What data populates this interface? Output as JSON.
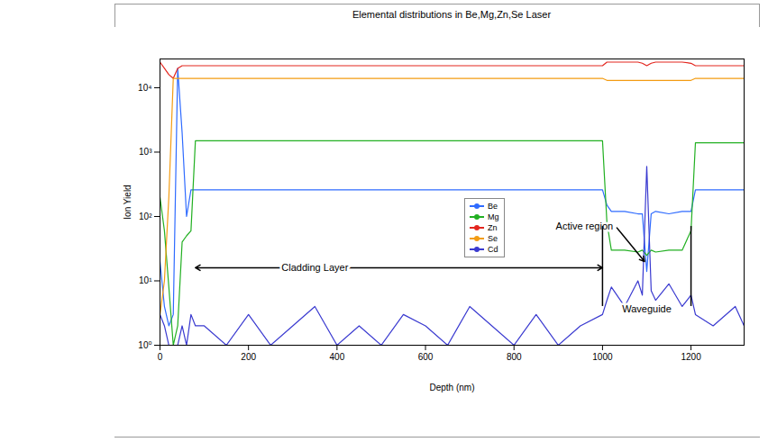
{
  "chart_data": {
    "type": "line",
    "title": "Elemental distributions in Be,Mg,Zn,Se Laser",
    "x_label": "Depth (nm)",
    "y_label": "Ion Yield",
    "x": [
      0,
      10,
      20,
      30,
      40,
      50,
      60,
      70,
      80,
      100,
      150,
      200,
      250,
      300,
      350,
      400,
      450,
      500,
      550,
      600,
      650,
      700,
      750,
      800,
      850,
      900,
      950,
      1000,
      1010,
      1020,
      1050,
      1080,
      1090,
      1100,
      1110,
      1120,
      1150,
      1180,
      1200,
      1210,
      1250,
      1300,
      1320
    ],
    "series": [
      {
        "name": "Be",
        "color": "#2f6bff",
        "values": [
          20,
          4,
          2,
          3,
          20000,
          2000,
          100,
          260,
          260,
          260,
          260,
          260,
          260,
          260,
          260,
          260,
          260,
          260,
          260,
          260,
          260,
          260,
          260,
          260,
          260,
          260,
          260,
          260,
          150,
          120,
          120,
          110,
          110,
          14,
          110,
          120,
          110,
          120,
          120,
          260,
          260,
          260,
          260
        ]
      },
      {
        "name": "Mg",
        "color": "#22b022",
        "values": [
          200,
          60,
          8,
          1,
          2,
          40,
          50,
          60,
          1500,
          1500,
          1500,
          1500,
          1500,
          1500,
          1500,
          1500,
          1500,
          1500,
          1500,
          1500,
          1500,
          1500,
          1500,
          1500,
          1500,
          1500,
          1500,
          1500,
          80,
          30,
          30,
          28,
          30,
          25,
          30,
          28,
          30,
          30,
          60,
          1400,
          1400,
          1400,
          1400
        ]
      },
      {
        "name": "Zn",
        "color": "#e3261f",
        "values": [
          25000,
          20000,
          16000,
          14000,
          20000,
          22000,
          22000,
          22000,
          22000,
          22000,
          22000,
          22000,
          22000,
          22000,
          22000,
          22000,
          22000,
          22000,
          22000,
          22000,
          22000,
          22000,
          22000,
          22000,
          22000,
          22000,
          22000,
          22000,
          25000,
          25000,
          25000,
          25000,
          24000,
          22000,
          24000,
          25000,
          25000,
          25000,
          24000,
          22000,
          22000,
          22000,
          22000
        ]
      },
      {
        "name": "Se",
        "color": "#f39c12",
        "values": [
          3,
          10,
          200,
          14000,
          14000,
          14000,
          14000,
          14000,
          14000,
          14000,
          14000,
          14000,
          14000,
          14000,
          14000,
          14000,
          14000,
          14000,
          14000,
          14000,
          14000,
          14000,
          14000,
          14000,
          14000,
          14000,
          14000,
          14000,
          13000,
          13000,
          13000,
          13000,
          13000,
          13000,
          13000,
          13000,
          13000,
          13000,
          13000,
          14000,
          14000,
          14000,
          14000
        ]
      },
      {
        "name": "Cd",
        "color": "#3a3ad0",
        "values": [
          3,
          2,
          1,
          1,
          1,
          2,
          1,
          3,
          2,
          2,
          1,
          3,
          1,
          2,
          4,
          1,
          2,
          1,
          3,
          2,
          1,
          4,
          2,
          1,
          3,
          1,
          2,
          3,
          5,
          8,
          4,
          10,
          6,
          600,
          7,
          5,
          9,
          4,
          6,
          3,
          2,
          4,
          2
        ]
      }
    ],
    "xlim": [
      0,
      1320
    ],
    "ylim": [
      1,
      28000
    ],
    "xticks": [
      0,
      200,
      400,
      600,
      800,
      1000,
      1200
    ],
    "yticks": [
      {
        "value": 1,
        "label": "10⁰"
      },
      {
        "value": 10,
        "label": "10¹"
      },
      {
        "value": 100,
        "label": "10²"
      },
      {
        "value": 1000,
        "label": "10³"
      },
      {
        "value": 10000,
        "label": "10⁴"
      }
    ],
    "log": "y",
    "grid": false,
    "legend": "center",
    "annotations": [
      {
        "text": "Cladding Layer",
        "x": 350,
        "y": 16,
        "x_range": [
          80,
          1000
        ]
      },
      {
        "text": "Active region",
        "x": 1030,
        "y": 70,
        "target_x": 1095,
        "target_y": 20
      },
      {
        "text": "Waveguide",
        "x": 1100,
        "y": 3.6,
        "x_range": [
          1000,
          1200
        ],
        "y_range": [
          4,
          70
        ]
      }
    ]
  }
}
